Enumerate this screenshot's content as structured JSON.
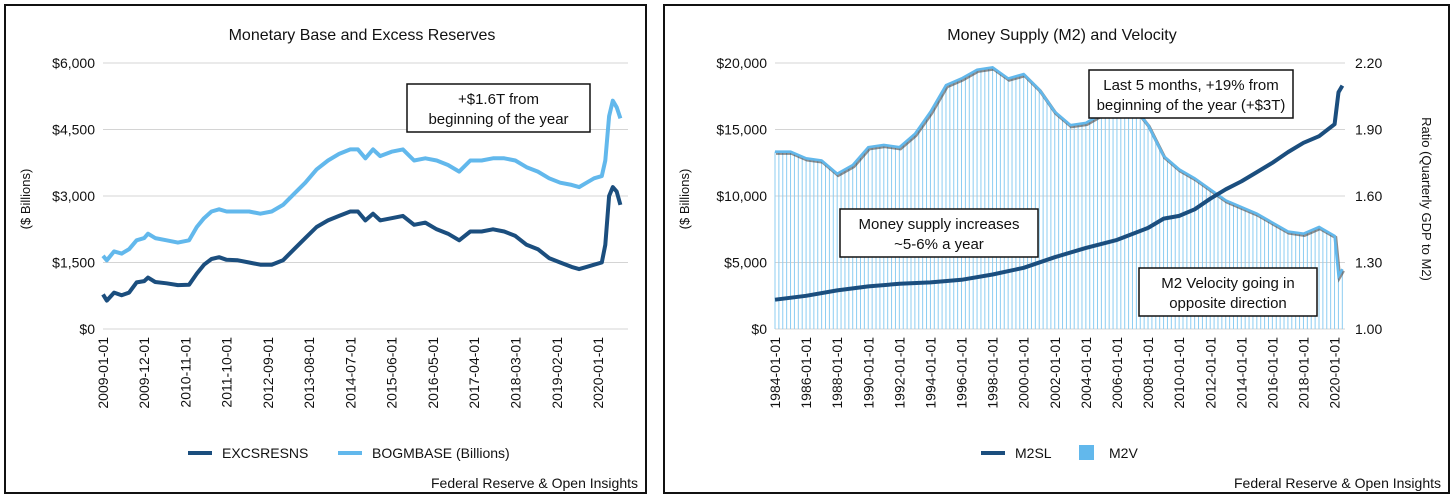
{
  "chart_data": [
    {
      "type": "line",
      "title": "Monetary Base and Excess Reserves",
      "ylabel": "($ Billions)",
      "xlabel": "",
      "ylim": [
        0,
        6000
      ],
      "y_ticks": [
        0,
        1500,
        3000,
        4500,
        6000
      ],
      "y_tick_labels": [
        "$0",
        "$1,500",
        "$3,000",
        "$4,500",
        "$6,000"
      ],
      "x_range": [
        "2009-01-01",
        "2020-09-01"
      ],
      "x_tick_labels": [
        "2009-01-01",
        "2009-12-01",
        "2010-11-01",
        "2011-10-01",
        "2012-09-01",
        "2013-08-01",
        "2014-07-01",
        "2015-06-01",
        "2016-05-01",
        "2017-04-01",
        "2018-03-01",
        "2019-02-01",
        "2020-01-01"
      ],
      "grid": "horizontal",
      "legend_position": "bottom",
      "series": [
        {
          "name": "EXCSRESNS",
          "color": "#1b4e7e",
          "points": [
            [
              "2009-01-01",
              780
            ],
            [
              "2009-02-01",
              640
            ],
            [
              "2009-04-01",
              820
            ],
            [
              "2009-06-01",
              760
            ],
            [
              "2009-08-01",
              820
            ],
            [
              "2009-10-01",
              1050
            ],
            [
              "2009-12-01",
              1080
            ],
            [
              "2010-01-01",
              1160
            ],
            [
              "2010-03-01",
              1060
            ],
            [
              "2010-06-01",
              1030
            ],
            [
              "2010-09-01",
              990
            ],
            [
              "2010-12-01",
              1000
            ],
            [
              "2011-02-01",
              1250
            ],
            [
              "2011-04-01",
              1450
            ],
            [
              "2011-06-01",
              1580
            ],
            [
              "2011-08-01",
              1620
            ],
            [
              "2011-10-01",
              1560
            ],
            [
              "2012-01-01",
              1550
            ],
            [
              "2012-04-01",
              1500
            ],
            [
              "2012-07-01",
              1450
            ],
            [
              "2012-10-01",
              1450
            ],
            [
              "2013-01-01",
              1550
            ],
            [
              "2013-04-01",
              1800
            ],
            [
              "2013-07-01",
              2050
            ],
            [
              "2013-10-01",
              2300
            ],
            [
              "2014-01-01",
              2450
            ],
            [
              "2014-04-01",
              2550
            ],
            [
              "2014-07-01",
              2650
            ],
            [
              "2014-09-01",
              2650
            ],
            [
              "2014-11-01",
              2450
            ],
            [
              "2015-01-01",
              2600
            ],
            [
              "2015-03-01",
              2450
            ],
            [
              "2015-06-01",
              2500
            ],
            [
              "2015-09-01",
              2550
            ],
            [
              "2015-12-01",
              2350
            ],
            [
              "2016-03-01",
              2400
            ],
            [
              "2016-06-01",
              2250
            ],
            [
              "2016-09-01",
              2150
            ],
            [
              "2016-12-01",
              2000
            ],
            [
              "2017-03-01",
              2200
            ],
            [
              "2017-06-01",
              2200
            ],
            [
              "2017-09-01",
              2250
            ],
            [
              "2017-12-01",
              2200
            ],
            [
              "2018-03-01",
              2100
            ],
            [
              "2018-06-01",
              1900
            ],
            [
              "2018-09-01",
              1800
            ],
            [
              "2018-12-01",
              1600
            ],
            [
              "2019-03-01",
              1500
            ],
            [
              "2019-06-01",
              1400
            ],
            [
              "2019-08-01",
              1350
            ],
            [
              "2019-10-01",
              1400
            ],
            [
              "2019-12-01",
              1450
            ],
            [
              "2020-02-01",
              1500
            ],
            [
              "2020-03-01",
              1900
            ],
            [
              "2020-04-01",
              3000
            ],
            [
              "2020-05-01",
              3200
            ],
            [
              "2020-06-01",
              3100
            ],
            [
              "2020-07-01",
              2800
            ]
          ]
        },
        {
          "name": "BOGMBASE (Billions)",
          "color": "#62b8ec",
          "points": [
            [
              "2009-01-01",
              1650
            ],
            [
              "2009-02-01",
              1550
            ],
            [
              "2009-04-01",
              1750
            ],
            [
              "2009-06-01",
              1700
            ],
            [
              "2009-08-01",
              1800
            ],
            [
              "2009-10-01",
              2000
            ],
            [
              "2009-12-01",
              2050
            ],
            [
              "2010-01-01",
              2150
            ],
            [
              "2010-03-01",
              2050
            ],
            [
              "2010-06-01",
              2000
            ],
            [
              "2010-09-01",
              1950
            ],
            [
              "2010-12-01",
              2000
            ],
            [
              "2011-02-01",
              2300
            ],
            [
              "2011-04-01",
              2500
            ],
            [
              "2011-06-01",
              2650
            ],
            [
              "2011-08-01",
              2700
            ],
            [
              "2011-10-01",
              2650
            ],
            [
              "2012-01-01",
              2650
            ],
            [
              "2012-04-01",
              2650
            ],
            [
              "2012-07-01",
              2600
            ],
            [
              "2012-10-01",
              2650
            ],
            [
              "2013-01-01",
              2800
            ],
            [
              "2013-04-01",
              3050
            ],
            [
              "2013-07-01",
              3300
            ],
            [
              "2013-10-01",
              3600
            ],
            [
              "2014-01-01",
              3800
            ],
            [
              "2014-04-01",
              3950
            ],
            [
              "2014-07-01",
              4050
            ],
            [
              "2014-09-01",
              4050
            ],
            [
              "2014-11-01",
              3850
            ],
            [
              "2015-01-01",
              4050
            ],
            [
              "2015-03-01",
              3900
            ],
            [
              "2015-06-01",
              4000
            ],
            [
              "2015-09-01",
              4050
            ],
            [
              "2015-12-01",
              3800
            ],
            [
              "2016-03-01",
              3850
            ],
            [
              "2016-06-01",
              3800
            ],
            [
              "2016-09-01",
              3700
            ],
            [
              "2016-12-01",
              3550
            ],
            [
              "2017-03-01",
              3800
            ],
            [
              "2017-06-01",
              3800
            ],
            [
              "2017-09-01",
              3850
            ],
            [
              "2017-12-01",
              3850
            ],
            [
              "2018-03-01",
              3800
            ],
            [
              "2018-06-01",
              3650
            ],
            [
              "2018-09-01",
              3550
            ],
            [
              "2018-12-01",
              3400
            ],
            [
              "2019-03-01",
              3300
            ],
            [
              "2019-06-01",
              3250
            ],
            [
              "2019-08-01",
              3200
            ],
            [
              "2019-10-01",
              3300
            ],
            [
              "2019-12-01",
              3400
            ],
            [
              "2020-02-01",
              3450
            ],
            [
              "2020-03-01",
              3800
            ],
            [
              "2020-04-01",
              4800
            ],
            [
              "2020-05-01",
              5150
            ],
            [
              "2020-06-01",
              5000
            ],
            [
              "2020-07-01",
              4750
            ]
          ]
        }
      ],
      "annotations": [
        {
          "lines": [
            "+$1.6T from",
            "beginning of the year"
          ]
        }
      ],
      "source": "Federal Reserve & Open Insights"
    },
    {
      "type": "line",
      "title": "Money Supply (M2) and Velocity",
      "ylabel": "($ Billions)",
      "y2label": "Ratio (Quarterly GDP to M2)",
      "xlabel": "",
      "ylim": [
        0,
        20000
      ],
      "y_ticks": [
        0,
        5000,
        10000,
        15000,
        20000
      ],
      "y_tick_labels": [
        "$0",
        "$5,000",
        "$10,000",
        "$15,000",
        "$20,000"
      ],
      "y2lim": [
        1.0,
        2.2
      ],
      "y2_ticks": [
        1.0,
        1.3,
        1.6,
        1.9,
        2.2
      ],
      "y2_tick_labels": [
        "1.00",
        "1.30",
        "1.60",
        "1.90",
        "2.20"
      ],
      "x_range": [
        "1984-01-01",
        "2020-09-01"
      ],
      "x_tick_labels": [
        "1984-01-01",
        "1986-01-01",
        "1988-01-01",
        "1990-01-01",
        "1992-01-01",
        "1994-01-01",
        "1996-01-01",
        "1998-01-01",
        "2000-01-01",
        "2002-01-01",
        "2004-01-01",
        "2006-01-01",
        "2008-01-01",
        "2010-01-01",
        "2012-01-01",
        "2014-01-01",
        "2016-01-01",
        "2018-01-01",
        "2020-01-01"
      ],
      "grid": "horizontal",
      "legend_position": "bottom",
      "series": [
        {
          "name": "M2SL",
          "axis": "left",
          "color": "#1b4e7e",
          "points": [
            [
              "1984-01-01",
              2200
            ],
            [
              "1986-01-01",
              2500
            ],
            [
              "1988-01-01",
              2900
            ],
            [
              "1990-01-01",
              3200
            ],
            [
              "1992-01-01",
              3400
            ],
            [
              "1994-01-01",
              3500
            ],
            [
              "1996-01-01",
              3700
            ],
            [
              "1998-01-01",
              4100
            ],
            [
              "2000-01-01",
              4600
            ],
            [
              "2002-01-01",
              5400
            ],
            [
              "2004-01-01",
              6100
            ],
            [
              "2006-01-01",
              6700
            ],
            [
              "2008-01-01",
              7600
            ],
            [
              "2009-01-01",
              8300
            ],
            [
              "2010-01-01",
              8500
            ],
            [
              "2011-01-01",
              9000
            ],
            [
              "2012-01-01",
              9800
            ],
            [
              "2013-01-01",
              10500
            ],
            [
              "2014-01-01",
              11100
            ],
            [
              "2015-01-01",
              11800
            ],
            [
              "2016-01-01",
              12500
            ],
            [
              "2017-01-01",
              13300
            ],
            [
              "2018-01-01",
              14000
            ],
            [
              "2019-01-01",
              14500
            ],
            [
              "2020-01-01",
              15400
            ],
            [
              "2020-04-01",
              17800
            ],
            [
              "2020-07-01",
              18300
            ]
          ]
        },
        {
          "name": "M2V",
          "axis": "right",
          "color": "#62b8ec",
          "points": [
            [
              "1984-01-01",
              1.8
            ],
            [
              "1985-01-01",
              1.8
            ],
            [
              "1986-01-01",
              1.77
            ],
            [
              "1987-01-01",
              1.76
            ],
            [
              "1988-01-01",
              1.7
            ],
            [
              "1989-01-01",
              1.74
            ],
            [
              "1990-01-01",
              1.82
            ],
            [
              "1991-01-01",
              1.83
            ],
            [
              "1992-01-01",
              1.82
            ],
            [
              "1993-01-01",
              1.88
            ],
            [
              "1994-01-01",
              1.98
            ],
            [
              "1995-01-01",
              2.1
            ],
            [
              "1996-01-01",
              2.13
            ],
            [
              "1997-01-01",
              2.17
            ],
            [
              "1998-01-01",
              2.18
            ],
            [
              "1999-01-01",
              2.13
            ],
            [
              "2000-01-01",
              2.15
            ],
            [
              "2001-01-01",
              2.08
            ],
            [
              "2002-01-01",
              1.98
            ],
            [
              "2003-01-01",
              1.92
            ],
            [
              "2004-01-01",
              1.93
            ],
            [
              "2005-01-01",
              1.97
            ],
            [
              "2006-01-01",
              2.03
            ],
            [
              "2007-01-01",
              2.01
            ],
            [
              "2008-01-01",
              1.92
            ],
            [
              "2009-01-01",
              1.78
            ],
            [
              "2010-01-01",
              1.72
            ],
            [
              "2011-01-01",
              1.68
            ],
            [
              "2012-01-01",
              1.63
            ],
            [
              "2013-01-01",
              1.58
            ],
            [
              "2014-01-01",
              1.55
            ],
            [
              "2015-01-01",
              1.52
            ],
            [
              "2016-01-01",
              1.48
            ],
            [
              "2017-01-01",
              1.44
            ],
            [
              "2018-01-01",
              1.43
            ],
            [
              "2019-01-01",
              1.46
            ],
            [
              "2020-01-01",
              1.42
            ],
            [
              "2020-04-01",
              1.24
            ],
            [
              "2020-07-01",
              1.27
            ]
          ]
        }
      ],
      "annotations": [
        {
          "lines": [
            "Last 5 months, +19% from",
            "beginning of the year (+$3T)"
          ]
        },
        {
          "lines": [
            "Money supply increases",
            "~5-6% a year"
          ]
        },
        {
          "lines": [
            "M2 Velocity going in",
            "opposite direction"
          ]
        }
      ],
      "source": "Federal Reserve & Open Insights"
    }
  ]
}
